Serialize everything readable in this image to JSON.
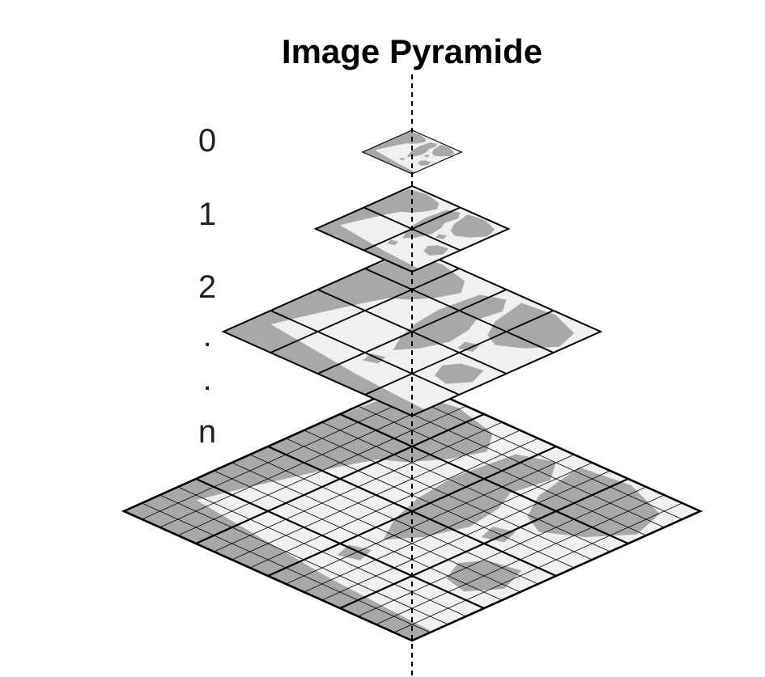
{
  "title": "Image Pyramide",
  "levels": [
    {
      "label": "0",
      "grid": 1
    },
    {
      "label": "1",
      "grid": 2
    },
    {
      "label": "2",
      "grid": 4
    },
    {
      "label": ".",
      "grid": null
    },
    {
      "label": ".",
      "grid": null
    },
    {
      "label": "n",
      "grid": 16
    }
  ],
  "colors": {
    "tile_background": "#f0f0f0",
    "land": "#a8a8a8",
    "grid_line": "#000000",
    "axis_line": "#000000",
    "text": "#000000"
  }
}
